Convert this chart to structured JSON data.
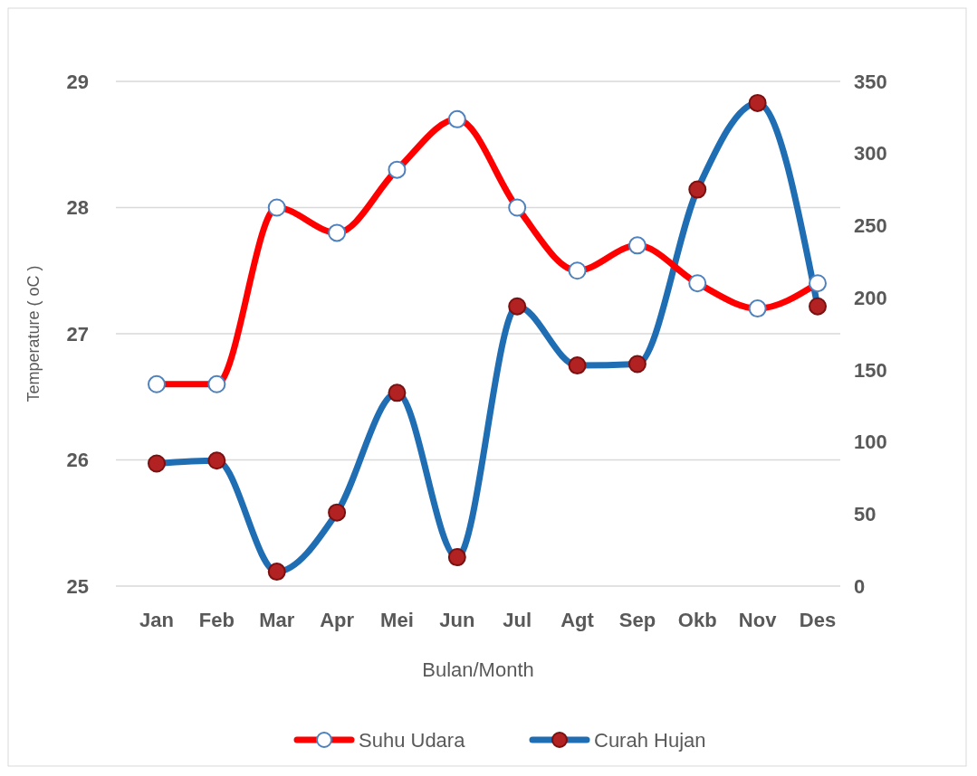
{
  "chart_data": {
    "type": "line",
    "xlabel": "Bulan/Month",
    "ylabel": "Temperature ( oC )",
    "categories": [
      "Jan",
      "Feb",
      "Mar",
      "Apr",
      "Mei",
      "Jun",
      "Jul",
      "Agt",
      "Sep",
      "Okb",
      "Nov",
      "Des"
    ],
    "series": [
      {
        "name": "Suhu Udara",
        "color": "#ff0000",
        "values": [
          26.6,
          26.6,
          28.0,
          27.8,
          28.3,
          28.7,
          28.0,
          27.5,
          27.7,
          27.4,
          27.2,
          27.4
        ]
      },
      {
        "name": "Curah Hujan",
        "color": "#1f6db3",
        "axis": "y2",
        "values": [
          85,
          87,
          10,
          51,
          134,
          20,
          194,
          153,
          154,
          275,
          335,
          194
        ]
      }
    ],
    "ylim": [
      25,
      29
    ],
    "yticks": [
      25,
      26,
      27,
      28,
      29
    ],
    "y2lim": [
      0,
      350
    ],
    "y2ticks": [
      0,
      50,
      100,
      150,
      200,
      250,
      300,
      350
    ],
    "grid": "y",
    "legend": "bottom",
    "marker": "circle",
    "line_style": "solid"
  }
}
